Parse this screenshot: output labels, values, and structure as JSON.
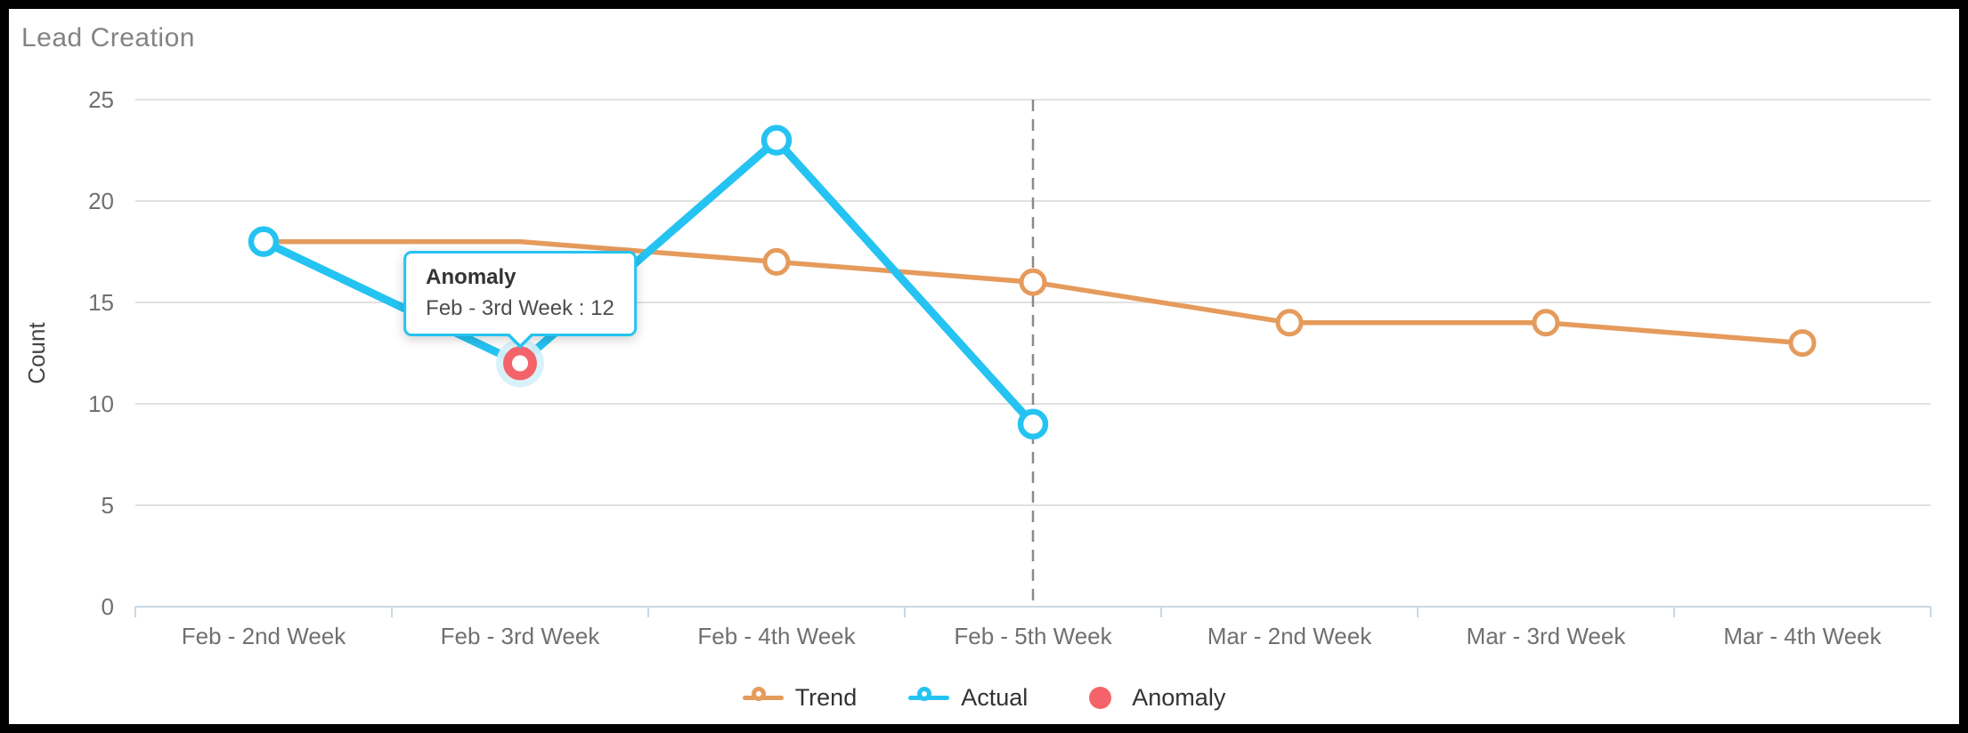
{
  "chart_data": {
    "type": "line",
    "title": "Lead Creation",
    "xlabel": "",
    "ylabel": "Count",
    "ylim": [
      0,
      25
    ],
    "yticks": [
      0,
      5,
      10,
      15,
      20,
      25
    ],
    "grid": true,
    "legend_position": "bottom",
    "categories": [
      "Feb - 2nd Week",
      "Feb - 3rd Week",
      "Feb - 4th Week",
      "Feb - 5th Week",
      "Mar - 2nd Week",
      "Mar - 3rd Week",
      "Mar - 4th Week"
    ],
    "series": [
      {
        "name": "Trend",
        "color": "#E59B5C",
        "marker": "hollow-circle",
        "values": [
          18,
          18,
          17,
          16,
          14,
          14,
          13
        ]
      },
      {
        "name": "Actual",
        "color": "#25C3F2",
        "marker": "hollow-circle",
        "values": [
          18,
          12,
          23,
          9,
          null,
          null,
          null
        ]
      },
      {
        "name": "Anomaly",
        "color": "#F4636A",
        "halo_color": "#D6F1FA",
        "marker": "anomaly-ring",
        "values": [
          null,
          12,
          null,
          null,
          null,
          null,
          null
        ]
      }
    ],
    "annotations": {
      "dashed_vline_index": 3,
      "dashed_vline_category": "Feb - 5th Week",
      "dashed_vline_color": "#8A8A8A"
    }
  },
  "tooltip": {
    "title": "Anomaly",
    "body": "Feb - 3rd Week : 12",
    "anchor_index": 1,
    "anchor_value": 12,
    "border_color": "#25C3F2"
  },
  "legend": [
    {
      "label": "Trend",
      "marker": "line-circle",
      "color": "#E59B5C"
    },
    {
      "label": "Actual",
      "marker": "line-circle",
      "color": "#25C3F2"
    },
    {
      "label": "Anomaly",
      "marker": "dot",
      "color": "#F4636A"
    }
  ],
  "style_colors": {
    "title_text": "#838383",
    "axis_line": "#C9D8E4",
    "grid_line": "#E1E1E1",
    "tick_text": "#707070",
    "axis_title_text": "#444444",
    "legend_text": "#333333",
    "background": "#FFFFFF",
    "frame": "#000000"
  }
}
